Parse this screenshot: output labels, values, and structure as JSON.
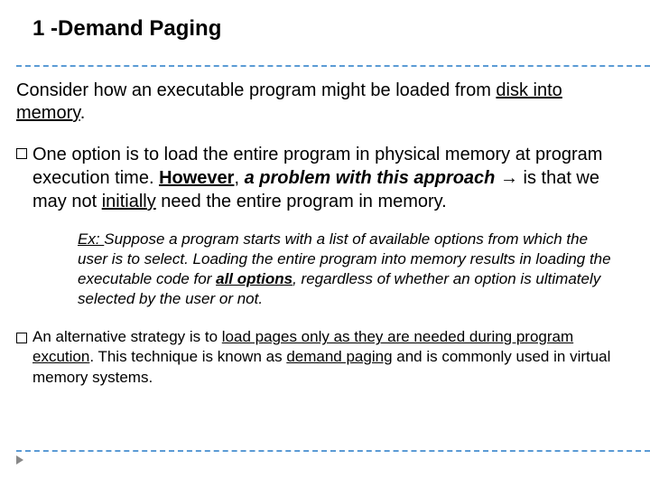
{
  "title": "1 -Demand Paging",
  "intro": {
    "pre": "Consider how an executable program might be loaded from ",
    "u1": "disk into memory",
    "post": "."
  },
  "bullet1": {
    "t1": "One option is to load the entire program in physical memory at program execution time. ",
    "t2": "However",
    "t3": ", ",
    "t4": "a problem with this approach ",
    "arrow": "→",
    "t5": " is that we may not ",
    "t6": "initially",
    "t7": " need the entire program in memory."
  },
  "example": {
    "lead": "Ex: ",
    "t1": "Suppose a program starts with a list of available options from which the user is to select. Loading the entire program into memory results in loading the executable code for ",
    "t2": "all options",
    "t3": ", regardless of whether an option is ultimately selected by the user or not."
  },
  "bullet2": {
    "t1": "An alternative strategy is to ",
    "t2": "load pages only as they are needed during program excution",
    "t3": ". This technique is known as ",
    "t4": "demand paging",
    "t5": " and is commonly used in virtual memory systems."
  },
  "colors": {
    "divider": "#5b9bd5",
    "text": "#000000",
    "background": "#ffffff"
  }
}
